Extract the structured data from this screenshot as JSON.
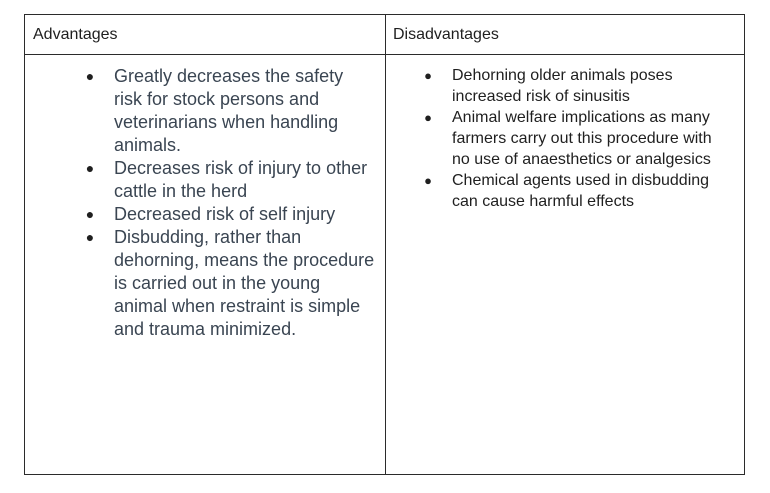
{
  "table": {
    "headers": {
      "advantages": "Advantages",
      "disadvantages": "Disadvantages"
    },
    "bullet_glyph": "●",
    "advantages": [
      "Greatly decreases the safety risk for stock persons and veterinarians when handling animals.",
      "Decreases risk of injury to other cattle in the herd",
      "Decreased risk of self injury",
      "Disbudding, rather than dehorning, means the procedure is carried out in the young animal when restraint is simple and trauma minimized."
    ],
    "disadvantages": [
      "Dehorning older animals poses increased risk of sinusitis",
      "Animal welfare implications as many farmers carry out this procedure with no use of anaesthetics or analgesics",
      "Chemical agents used in disbudding can cause harmful effects"
    ]
  }
}
